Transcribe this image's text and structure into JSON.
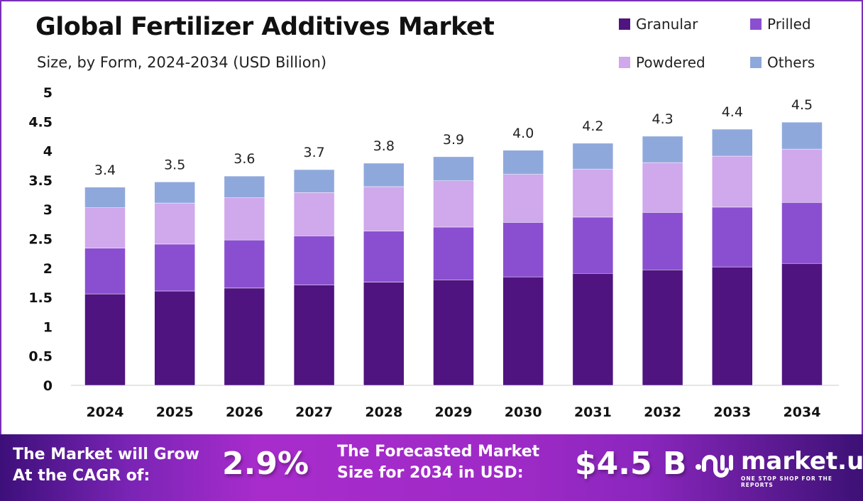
{
  "chart_data": {
    "type": "bar",
    "stacked": true,
    "title": "Global Fertilizer Additives Market",
    "subtitle": "Size, by Form, 2024-2034 (USD Billion)",
    "categories": [
      "2024",
      "2025",
      "2026",
      "2027",
      "2028",
      "2029",
      "2030",
      "2031",
      "2032",
      "2033",
      "2034"
    ],
    "series": [
      {
        "name": "Granular",
        "color": "#4f1480",
        "values": [
          1.56,
          1.61,
          1.66,
          1.71,
          1.76,
          1.8,
          1.85,
          1.91,
          1.97,
          2.02,
          2.08
        ]
      },
      {
        "name": "Prilled",
        "color": "#8a4fd0",
        "values": [
          0.78,
          0.8,
          0.82,
          0.84,
          0.87,
          0.9,
          0.93,
          0.96,
          0.98,
          1.02,
          1.04
        ]
      },
      {
        "name": "Powdered",
        "color": "#d0a8ec",
        "values": [
          0.69,
          0.7,
          0.72,
          0.74,
          0.76,
          0.79,
          0.82,
          0.82,
          0.85,
          0.87,
          0.91
        ]
      },
      {
        "name": "Others",
        "color": "#8fa8dc",
        "values": [
          0.35,
          0.36,
          0.37,
          0.39,
          0.4,
          0.41,
          0.41,
          0.44,
          0.45,
          0.46,
          0.46
        ]
      }
    ],
    "totals": [
      "3.4",
      "3.5",
      "3.6",
      "3.7",
      "3.8",
      "3.9",
      "4.0",
      "4.2",
      "4.3",
      "4.4",
      "4.5"
    ],
    "yticks": [
      "0",
      "0.5",
      "1",
      "1.5",
      "2",
      "2.5",
      "3",
      "3.5",
      "4",
      "4.5",
      "5"
    ],
    "ylim": [
      0,
      5
    ],
    "grid": false,
    "legend_position": "top-right"
  },
  "footer": {
    "cagr_label_1": "The Market will Grow",
    "cagr_label_2": "At the CAGR of:",
    "cagr_value": "2.9%",
    "forecast_label_1": "The Forecasted Market",
    "forecast_label_2": "Size for 2034 in USD:",
    "forecast_value": "$4.5 B",
    "logo_name": "market.us",
    "logo_tagline": "ONE STOP SHOP FOR THE REPORTS"
  }
}
